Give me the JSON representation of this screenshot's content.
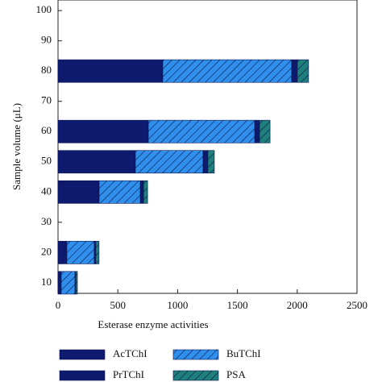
{
  "chart_data": {
    "type": "hbar_stacked",
    "x_label": "Esterase enzyme activities",
    "y_label": "Sample volume (μL)",
    "y": [
      10,
      20,
      40,
      50,
      60,
      80
    ],
    "series": [
      {
        "name": "AcTChI",
        "color": "#0e1a6e",
        "hatch": "none",
        "values": [
          27,
          74,
          344,
          647,
          755,
          876
        ]
      },
      {
        "name": "BuTChI",
        "color": "#2f8fea",
        "hatch": "diagonal",
        "values": [
          115,
          229,
          344,
          566,
          890,
          1078
        ]
      },
      {
        "name": "PrTChI",
        "color": "#0e1a6e",
        "hatch": "none",
        "values": [
          7,
          13,
          27,
          40,
          40,
          47
        ]
      },
      {
        "name": "PSA",
        "color": "#1f7f7a",
        "hatch": "diagonal",
        "values": [
          13,
          27,
          34,
          54,
          88,
          94
        ]
      }
    ],
    "xlim": [
      0,
      2500
    ],
    "xticks": [
      0,
      500,
      1000,
      1500,
      2000,
      2500
    ],
    "ylim": [
      6.5,
      103.5
    ],
    "yticks": [
      10,
      20,
      30,
      40,
      50,
      60,
      70,
      80,
      90,
      100
    ],
    "bar_height": 7.5
  }
}
